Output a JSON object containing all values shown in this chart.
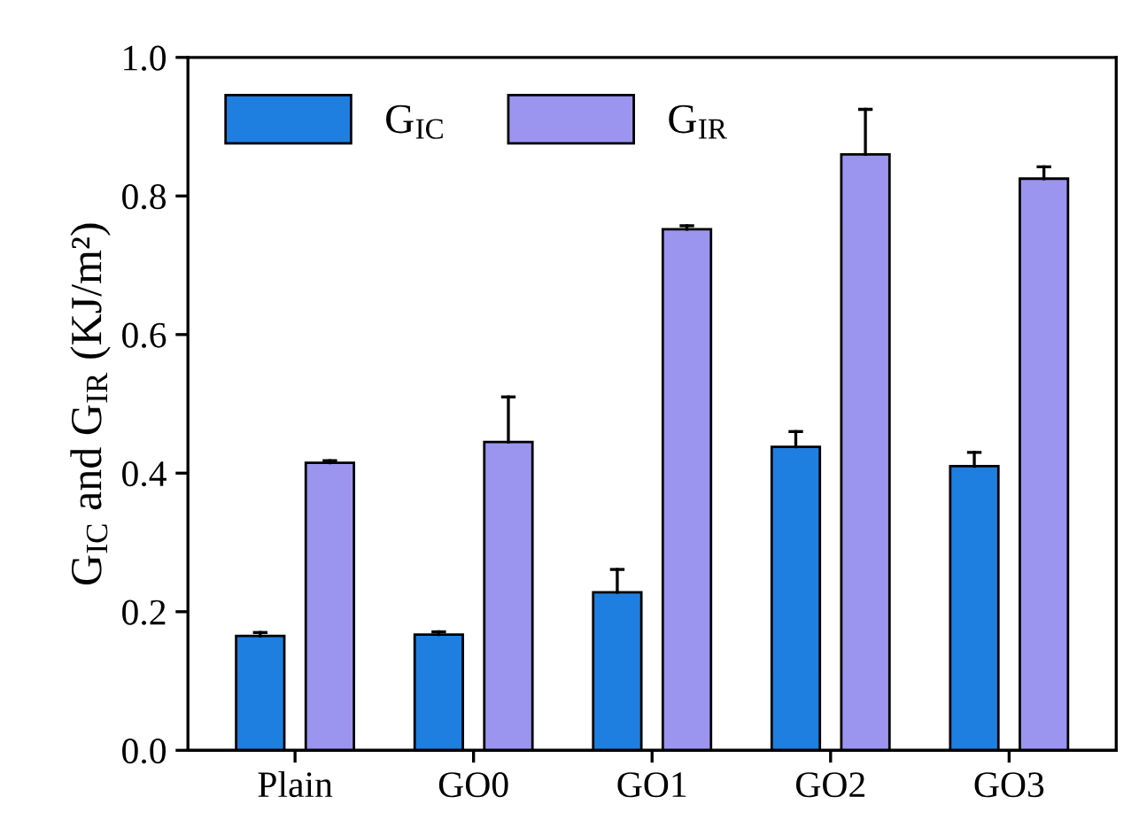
{
  "chart_data": {
    "type": "bar",
    "ylabel": "G$_{IC}$ and G$_{IR}$ (KJ/m²)",
    "categories": [
      "Plain",
      "GO0",
      "GO1",
      "GO2",
      "GO3"
    ],
    "series": [
      {
        "name": "G$_{IC}$",
        "color": "#1f7fe0",
        "values": [
          0.165,
          0.167,
          0.228,
          0.438,
          0.41
        ],
        "errors": [
          [
            0.165,
            0.17
          ],
          [
            0.167,
            0.171
          ],
          [
            0.228,
            0.261
          ],
          [
            0.438,
            0.46
          ],
          [
            0.41,
            0.43
          ]
        ]
      },
      {
        "name": "G$_{IR}$",
        "color": "#9b95f0",
        "values": [
          0.415,
          0.445,
          0.752,
          0.86,
          0.825
        ],
        "errors": [
          [
            0.415,
            0.418
          ],
          [
            0.445,
            0.51
          ],
          [
            0.752,
            0.757
          ],
          [
            0.86,
            0.925
          ],
          [
            0.825,
            0.842
          ]
        ]
      }
    ],
    "ylim": [
      0,
      1.0
    ],
    "yticks": [
      {
        "value": 0,
        "label": "0.0"
      },
      0.2,
      0.4,
      0.6,
      0.8,
      {
        "value": 1.0,
        "label": "1.0"
      }
    ],
    "grid": false,
    "legend": "top left"
  }
}
